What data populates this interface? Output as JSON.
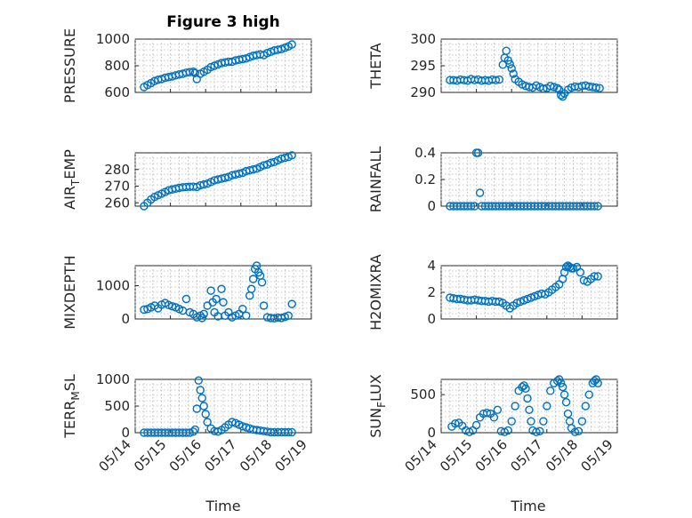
{
  "figure": {
    "title": "Figure 3 high"
  },
  "x_axis": {
    "label": "Time",
    "ticks": [
      {
        "label": "05/14",
        "day": 14
      },
      {
        "label": "05/15",
        "day": 15
      },
      {
        "label": "05/16",
        "day": 16
      },
      {
        "label": "05/17",
        "day": 17
      },
      {
        "label": "05/18",
        "day": 18
      },
      {
        "label": "05/19",
        "day": 19
      }
    ],
    "range_days": [
      14,
      19
    ]
  },
  "colors": {
    "marker": "#0072BD",
    "axes": "#262626",
    "grid": "#b4b4b4"
  },
  "chart_data": [
    {
      "type": "scatter",
      "name": "pressure",
      "ylabel": "PRESSURE",
      "ylabel_sub": "",
      "ylim": [
        600,
        1000
      ],
      "yticks": [
        600,
        800,
        1000
      ],
      "x": [
        14.25,
        14.35,
        14.45,
        14.55,
        14.65,
        14.75,
        14.85,
        14.95,
        15.05,
        15.15,
        15.25,
        15.35,
        15.45,
        15.55,
        15.65,
        15.7,
        15.75,
        15.85,
        15.95,
        16.05,
        16.15,
        16.25,
        16.35,
        16.45,
        16.55,
        16.65,
        16.75,
        16.85,
        16.95,
        17.05,
        17.15,
        17.25,
        17.35,
        17.45,
        17.55,
        17.65,
        17.75,
        17.85,
        17.95,
        18.05,
        18.15,
        18.25,
        18.35,
        18.45
      ],
      "y": [
        640,
        655,
        670,
        685,
        695,
        700,
        710,
        715,
        720,
        728,
        735,
        740,
        748,
        752,
        755,
        745,
        700,
        740,
        755,
        770,
        790,
        800,
        810,
        820,
        825,
        830,
        830,
        840,
        845,
        850,
        855,
        865,
        875,
        880,
        885,
        880,
        895,
        905,
        915,
        920,
        925,
        935,
        945,
        960
      ]
    },
    {
      "type": "scatter",
      "name": "theta",
      "ylabel": "THETA",
      "ylabel_sub": "",
      "ylim": [
        290,
        300
      ],
      "yticks": [
        290,
        295,
        300
      ],
      "x": [
        14.25,
        14.35,
        14.45,
        14.55,
        14.65,
        14.75,
        14.85,
        14.95,
        15.05,
        15.15,
        15.25,
        15.35,
        15.45,
        15.55,
        15.65,
        15.75,
        15.8,
        15.85,
        15.9,
        15.95,
        16.0,
        16.05,
        16.1,
        16.2,
        16.3,
        16.4,
        16.5,
        16.6,
        16.7,
        16.8,
        16.9,
        17.0,
        17.1,
        17.2,
        17.3,
        17.35,
        17.4,
        17.45,
        17.5,
        17.6,
        17.7,
        17.8,
        17.9,
        18.0,
        18.1,
        18.2,
        18.3,
        18.4,
        18.5
      ],
      "y": [
        292.3,
        292.3,
        292.2,
        292.4,
        292.3,
        292.2,
        292.5,
        292.3,
        292.4,
        292.2,
        292.3,
        292.2,
        292.4,
        292.3,
        292.4,
        295.2,
        296.5,
        297.8,
        296.0,
        295.3,
        294.5,
        293.5,
        292.5,
        292.0,
        291.5,
        291.2,
        291.0,
        290.9,
        291.3,
        291.0,
        290.7,
        290.8,
        291.2,
        291.0,
        290.8,
        290.5,
        289.5,
        289.2,
        289.8,
        290.5,
        290.9,
        291.1,
        291.0,
        291.2,
        291.3,
        291.1,
        291.0,
        290.9,
        290.8
      ]
    },
    {
      "type": "scatter",
      "name": "air-temp",
      "ylabel": "AIR",
      "ylabel_sub": "T",
      "ylabel_suffix": "EMP",
      "ylim": [
        258,
        290
      ],
      "yticks": [
        260,
        270,
        280
      ],
      "x": [
        14.25,
        14.35,
        14.45,
        14.55,
        14.65,
        14.75,
        14.85,
        14.95,
        15.05,
        15.15,
        15.25,
        15.35,
        15.45,
        15.55,
        15.65,
        15.75,
        15.85,
        15.95,
        16.05,
        16.15,
        16.25,
        16.35,
        16.45,
        16.55,
        16.65,
        16.75,
        16.85,
        16.95,
        17.05,
        17.15,
        17.25,
        17.35,
        17.45,
        17.55,
        17.65,
        17.75,
        17.85,
        17.95,
        18.05,
        18.15,
        18.25,
        18.35,
        18.45
      ],
      "y": [
        258,
        260,
        262,
        263.5,
        264.5,
        265.5,
        266.5,
        267.5,
        268,
        268.5,
        269,
        269.3,
        269.5,
        269.6,
        269.7,
        269.5,
        270.5,
        271,
        271.5,
        272.5,
        273.5,
        274,
        274.5,
        275,
        275.5,
        276.5,
        277,
        277.5,
        278,
        279,
        279.5,
        280,
        280.5,
        281.5,
        282.5,
        283,
        284,
        284.5,
        285.5,
        286.5,
        287,
        287.5,
        288.5
      ]
    },
    {
      "type": "scatter",
      "name": "rainfall",
      "ylabel": "RAINFALL",
      "ylabel_sub": "",
      "ylim": [
        0,
        0.4
      ],
      "yticks": [
        0,
        0.2,
        0.4
      ],
      "x": [
        14.25,
        14.35,
        14.45,
        14.55,
        14.65,
        14.75,
        14.85,
        14.95,
        15.0,
        15.05,
        15.1,
        15.15,
        15.25,
        15.35,
        15.45,
        15.55,
        15.65,
        15.75,
        15.85,
        15.95,
        16.05,
        16.15,
        16.25,
        16.35,
        16.45,
        16.55,
        16.65,
        16.75,
        16.85,
        16.95,
        17.05,
        17.15,
        17.25,
        17.35,
        17.45,
        17.55,
        17.65,
        17.75,
        17.85,
        17.95,
        18.05,
        18.15,
        18.25,
        18.35,
        18.45
      ],
      "y": [
        0,
        0,
        0,
        0,
        0,
        0,
        0,
        0,
        0.4,
        0.4,
        0.1,
        0,
        0,
        0,
        0,
        0,
        0,
        0,
        0,
        0,
        0,
        0,
        0,
        0,
        0,
        0,
        0,
        0,
        0,
        0,
        0,
        0,
        0,
        0,
        0,
        0,
        0,
        0,
        0,
        0,
        0,
        0,
        0,
        0,
        0
      ]
    },
    {
      "type": "scatter",
      "name": "mixdepth",
      "ylabel": "MIXDEPTH",
      "ylabel_sub": "",
      "ylim": [
        0,
        1600
      ],
      "yticks": [
        0,
        1000
      ],
      "x": [
        14.25,
        14.35,
        14.45,
        14.55,
        14.65,
        14.75,
        14.85,
        14.95,
        15.05,
        15.15,
        15.25,
        15.35,
        15.45,
        15.55,
        15.65,
        15.75,
        15.85,
        15.9,
        15.95,
        16.05,
        16.15,
        16.2,
        16.25,
        16.3,
        16.35,
        16.45,
        16.5,
        16.55,
        16.65,
        16.75,
        16.85,
        16.95,
        17.05,
        17.15,
        17.25,
        17.3,
        17.35,
        17.4,
        17.45,
        17.5,
        17.55,
        17.6,
        17.65,
        17.75,
        17.85,
        17.95,
        18.05,
        18.15,
        18.25,
        18.35,
        18.45
      ],
      "y": [
        280,
        300,
        350,
        400,
        320,
        430,
        480,
        420,
        380,
        350,
        300,
        250,
        600,
        200,
        150,
        50,
        100,
        30,
        150,
        400,
        850,
        500,
        200,
        600,
        80,
        900,
        500,
        100,
        200,
        50,
        100,
        150,
        300,
        100,
        700,
        900,
        1200,
        1500,
        1600,
        1400,
        1300,
        1100,
        400,
        50,
        30,
        20,
        40,
        30,
        60,
        100,
        450
      ]
    },
    {
      "type": "scatter",
      "name": "h2omixratio",
      "ylabel": "H2OMIXRA",
      "ylabel_sub": "",
      "ylim": [
        0,
        4
      ],
      "yticks": [
        0,
        2,
        4
      ],
      "x": [
        14.25,
        14.35,
        14.45,
        14.55,
        14.65,
        14.75,
        14.85,
        14.95,
        15.05,
        15.15,
        15.25,
        15.35,
        15.45,
        15.55,
        15.65,
        15.75,
        15.85,
        15.95,
        16.05,
        16.15,
        16.25,
        16.35,
        16.45,
        16.55,
        16.65,
        16.75,
        16.85,
        16.95,
        17.05,
        17.15,
        17.25,
        17.35,
        17.45,
        17.5,
        17.55,
        17.6,
        17.65,
        17.7,
        17.75,
        17.85,
        17.95,
        18.05,
        18.15,
        18.25,
        18.35,
        18.45
      ],
      "y": [
        1.6,
        1.55,
        1.5,
        1.5,
        1.45,
        1.4,
        1.4,
        1.45,
        1.4,
        1.35,
        1.35,
        1.3,
        1.35,
        1.3,
        1.3,
        1.2,
        1.0,
        0.8,
        1.0,
        1.2,
        1.3,
        1.4,
        1.5,
        1.6,
        1.7,
        1.8,
        1.9,
        1.85,
        2.0,
        2.2,
        2.4,
        2.6,
        3.0,
        3.5,
        3.9,
        4.0,
        3.9,
        3.8,
        3.8,
        3.9,
        3.5,
        2.9,
        2.8,
        3.0,
        3.2,
        3.2
      ]
    },
    {
      "type": "scatter",
      "name": "terr-msl",
      "ylabel": "TERR",
      "ylabel_sub": "M",
      "ylabel_suffix": "SL",
      "ylim": [
        0,
        1000
      ],
      "yticks": [
        0,
        500,
        1000
      ],
      "x": [
        14.25,
        14.35,
        14.45,
        14.55,
        14.65,
        14.75,
        14.85,
        14.95,
        15.05,
        15.15,
        15.25,
        15.35,
        15.45,
        15.55,
        15.65,
        15.7,
        15.75,
        15.8,
        15.85,
        15.9,
        15.95,
        16.0,
        16.05,
        16.15,
        16.25,
        16.35,
        16.45,
        16.55,
        16.65,
        16.75,
        16.85,
        16.95,
        17.05,
        17.15,
        17.25,
        17.35,
        17.45,
        17.55,
        17.65,
        17.75,
        17.85,
        17.95,
        18.05,
        18.15,
        18.25,
        18.35,
        18.45
      ],
      "y": [
        0,
        0,
        0,
        0,
        0,
        0,
        0,
        0,
        0,
        0,
        0,
        0,
        0,
        0,
        20,
        60,
        450,
        980,
        800,
        650,
        500,
        350,
        200,
        80,
        30,
        20,
        50,
        100,
        150,
        200,
        180,
        150,
        120,
        100,
        80,
        60,
        50,
        40,
        30,
        20,
        10,
        10,
        10,
        10,
        10,
        10,
        10
      ]
    },
    {
      "type": "scatter",
      "name": "sun-flux",
      "ylabel": "SUN",
      "ylabel_sub": "F",
      "ylabel_suffix": "LUX",
      "ylim": [
        0,
        700
      ],
      "yticks": [
        0,
        500
      ],
      "x": [
        14.3,
        14.4,
        14.5,
        14.6,
        14.7,
        14.8,
        14.9,
        15.0,
        15.1,
        15.2,
        15.3,
        15.4,
        15.5,
        15.6,
        15.7,
        15.8,
        15.9,
        16.0,
        16.1,
        16.2,
        16.3,
        16.35,
        16.4,
        16.45,
        16.5,
        16.55,
        16.6,
        16.7,
        16.8,
        16.9,
        17.0,
        17.1,
        17.2,
        17.3,
        17.35,
        17.4,
        17.45,
        17.5,
        17.55,
        17.6,
        17.65,
        17.7,
        17.8,
        17.9,
        18.0,
        18.1,
        18.2,
        18.3,
        18.35,
        18.4,
        18.45
      ],
      "y": [
        80,
        120,
        130,
        90,
        30,
        10,
        30,
        100,
        200,
        250,
        260,
        250,
        200,
        300,
        20,
        10,
        30,
        150,
        350,
        550,
        600,
        620,
        580,
        450,
        300,
        150,
        30,
        10,
        20,
        150,
        350,
        550,
        650,
        680,
        700,
        650,
        600,
        500,
        400,
        250,
        150,
        60,
        10,
        20,
        150,
        350,
        500,
        650,
        680,
        700,
        650
      ]
    }
  ]
}
